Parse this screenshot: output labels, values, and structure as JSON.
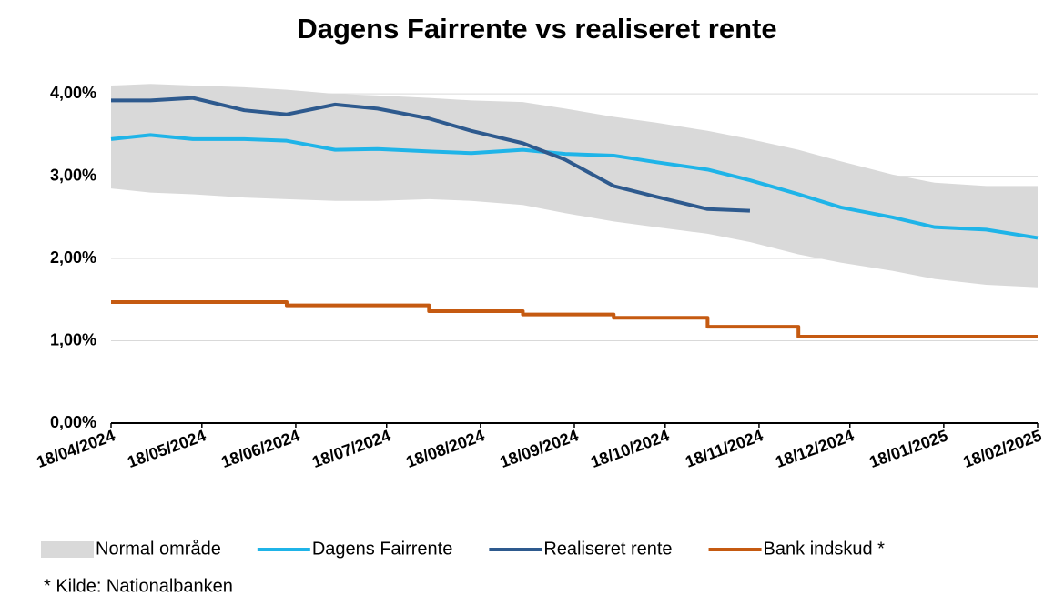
{
  "chart_data": {
    "type": "line",
    "title": "Dagens Fairrente vs realiseret rente",
    "note": "* Kilde: Nationalbanken",
    "x": [
      "18/04/2024",
      "01/05/2024",
      "15/05/2024",
      "01/06/2024",
      "15/06/2024",
      "01/07/2024",
      "15/07/2024",
      "01/08/2024",
      "15/08/2024",
      "01/09/2024",
      "15/09/2024",
      "01/10/2024",
      "15/10/2024",
      "01/11/2024",
      "15/11/2024",
      "01/12/2024",
      "15/12/2024",
      "01/01/2025",
      "15/01/2025",
      "01/02/2025",
      "18/02/2025"
    ],
    "xlim": [
      "18/04/2024",
      "18/02/2025"
    ],
    "xticks": [
      "18/04/2024",
      "18/05/2024",
      "18/06/2024",
      "18/07/2024",
      "18/08/2024",
      "18/09/2024",
      "18/10/2024",
      "18/11/2024",
      "18/12/2024",
      "18/01/2025",
      "18/02/2025"
    ],
    "ylim": [
      0,
      4.2
    ],
    "yticks": [
      {
        "value": 0,
        "label": "0,00%"
      },
      {
        "value": 1,
        "label": "1,00%"
      },
      {
        "value": 2,
        "label": "2,00%"
      },
      {
        "value": 3,
        "label": "3,00%"
      },
      {
        "value": 4,
        "label": "4,00%"
      }
    ],
    "grid": true,
    "legend": "bottom",
    "series": [
      {
        "name": "Normal område",
        "color": "#d9d9d9",
        "type": "band",
        "values": [
          4.1,
          4.12,
          4.1,
          4.08,
          4.05,
          4.0,
          3.98,
          3.95,
          3.92,
          3.9,
          3.82,
          3.72,
          3.65,
          3.55,
          3.45,
          3.32,
          3.18,
          3.02,
          2.92,
          2.88,
          2.88
        ],
        "lower": [
          2.85,
          2.8,
          2.78,
          2.74,
          2.72,
          2.7,
          2.7,
          2.72,
          2.7,
          2.65,
          2.55,
          2.45,
          2.38,
          2.3,
          2.2,
          2.05,
          1.95,
          1.85,
          1.75,
          1.68,
          1.65
        ]
      },
      {
        "name": "Dagens Fairrente",
        "color": "#1fb4e8",
        "values": [
          3.45,
          3.5,
          3.45,
          3.45,
          3.43,
          3.32,
          3.33,
          3.3,
          3.28,
          3.32,
          3.27,
          3.25,
          3.17,
          3.08,
          2.95,
          2.78,
          2.62,
          2.5,
          2.38,
          2.35,
          2.25
        ]
      },
      {
        "name": "Realiseret rente",
        "color": "#2e5a8e",
        "values": [
          3.92,
          3.92,
          3.95,
          3.8,
          3.75,
          3.87,
          3.82,
          3.7,
          3.55,
          3.4,
          3.2,
          2.88,
          2.75,
          2.6,
          2.58,
          null,
          null,
          null,
          null,
          null,
          null
        ]
      },
      {
        "name": "Bank indskud *",
        "color": "#c55a11",
        "step": "post",
        "values": [
          1.47,
          1.47,
          1.47,
          1.47,
          1.43,
          1.43,
          1.43,
          1.36,
          1.36,
          1.32,
          1.32,
          1.28,
          1.28,
          1.17,
          1.17,
          1.05,
          1.05,
          1.05,
          1.05,
          1.05,
          1.05
        ]
      }
    ]
  }
}
